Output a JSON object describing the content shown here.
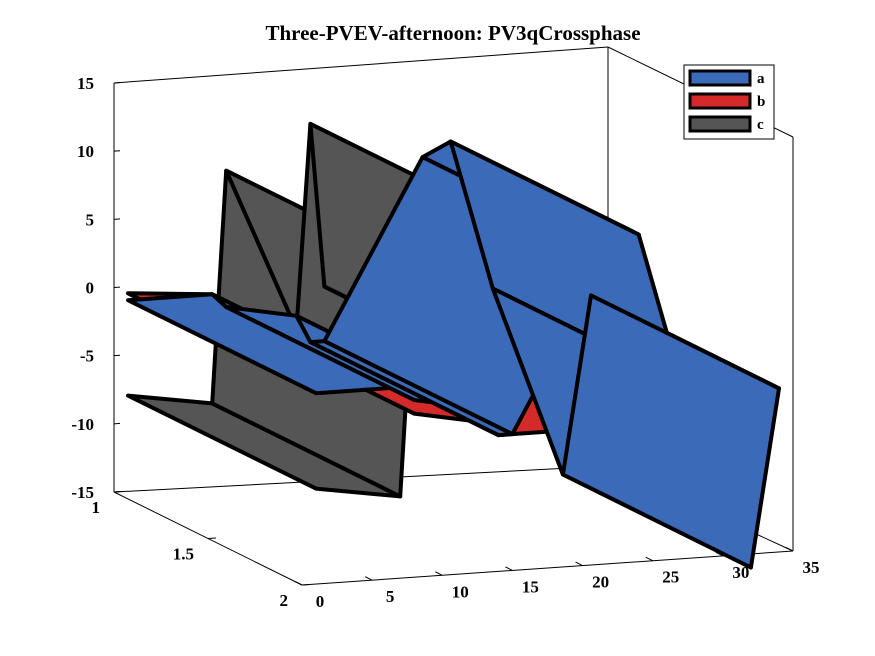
{
  "chart_data": {
    "type": "3d-surface",
    "title": "Three-PVEV-afternoon: PV3qCrossphase",
    "xlabel": "",
    "ylabel": "",
    "zlabel": "",
    "xlim": [
      0,
      35
    ],
    "ylim": [
      1,
      2
    ],
    "zlim": [
      -15,
      15
    ],
    "x_ticks": [
      "0",
      "5",
      "10",
      "15",
      "20",
      "25",
      "30",
      "35"
    ],
    "y_ticks": [
      "1",
      "1.5",
      "2"
    ],
    "z_ticks": [
      "15",
      "10",
      "5",
      "0",
      "-5",
      "-10",
      "-15"
    ],
    "legend_position": "top-right",
    "legend": [
      {
        "label": "a",
        "color": "#3b6bb8"
      },
      {
        "label": "b",
        "color": "#d42a2a"
      },
      {
        "label": "c",
        "color": "#555555"
      }
    ],
    "series": [
      {
        "name": "a",
        "color": "#3b6bb8",
        "points": [
          [
            1,
            -1
          ],
          [
            7,
            -1
          ],
          [
            8,
            -2
          ],
          [
            13,
            -3
          ],
          [
            14,
            -5
          ],
          [
            15,
            -5
          ],
          [
            22,
            8
          ],
          [
            24,
            9
          ],
          [
            27,
            -2
          ],
          [
            32,
            -16
          ],
          [
            34,
            -3
          ]
        ]
      },
      {
        "name": "b",
        "color": "#d42a2a",
        "points": [
          [
            1,
            -0.5
          ],
          [
            7,
            -1
          ],
          [
            8,
            -3
          ],
          [
            13,
            -4
          ],
          [
            14,
            -5
          ],
          [
            15,
            -5
          ],
          [
            22,
            -5
          ],
          [
            24,
            -4
          ],
          [
            27,
            -3
          ],
          [
            32,
            -3
          ],
          [
            34,
            -3
          ]
        ]
      },
      {
        "name": "c",
        "color": "#555555",
        "points": [
          [
            1,
            -8
          ],
          [
            7,
            -9
          ],
          [
            8,
            8
          ],
          [
            13,
            -4
          ],
          [
            14,
            11
          ],
          [
            15,
            -1
          ],
          [
            22,
            -5
          ],
          [
            24,
            3
          ],
          [
            27,
            -3
          ],
          [
            32,
            -3
          ],
          [
            34,
            -3
          ]
        ]
      }
    ]
  }
}
